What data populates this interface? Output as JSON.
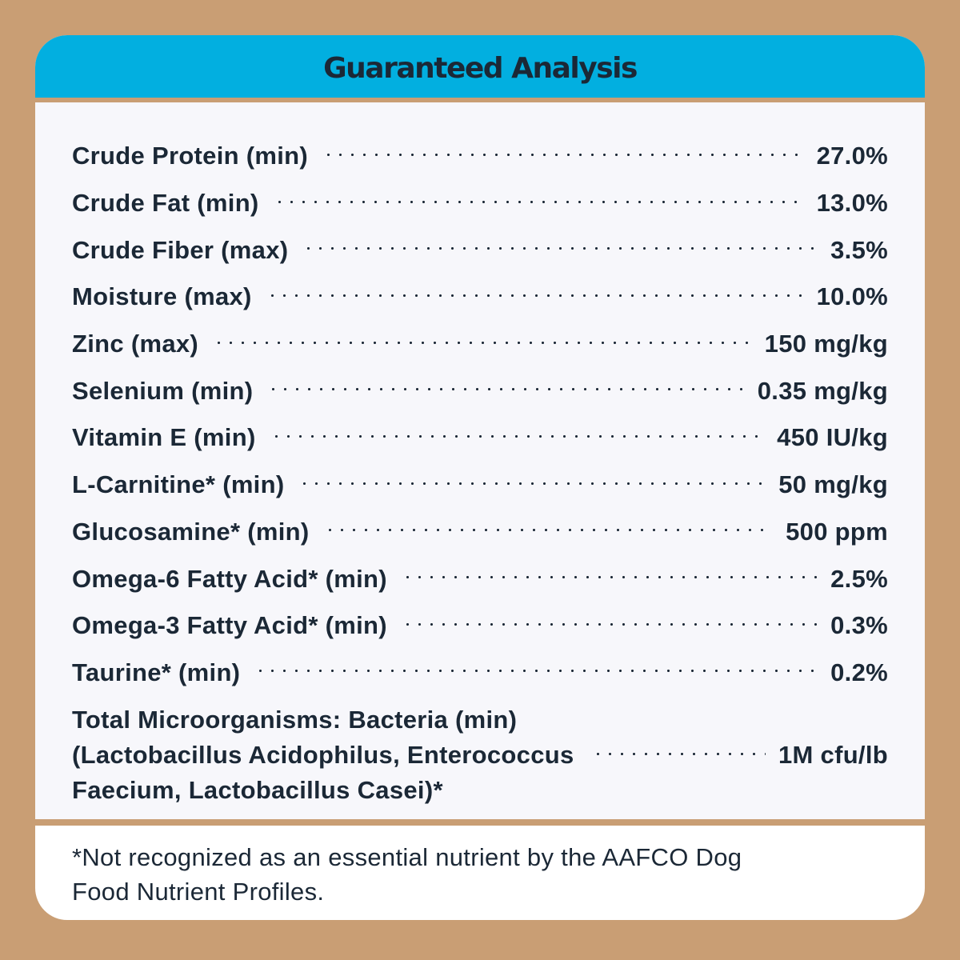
{
  "title": "Guaranteed Analysis",
  "rows": [
    {
      "label": "Crude Protein (min)",
      "value": "27.0%"
    },
    {
      "label": "Crude Fat (min)",
      "value": "13.0%"
    },
    {
      "label": "Crude Fiber (max)",
      "value": "3.5%"
    },
    {
      "label": "Moisture (max)",
      "value": "10.0%"
    },
    {
      "label": "Zinc (max)",
      "value": "150 mg/kg"
    },
    {
      "label": "Selenium (min)",
      "value": "0.35 mg/kg"
    },
    {
      "label": "Vitamin E (min)",
      "value": "450 IU/kg"
    },
    {
      "label": "L-Carnitine* (min)",
      "value": "50 mg/kg"
    },
    {
      "label": "Glucosamine* (min)",
      "value": "500 ppm"
    },
    {
      "label": "Omega-6 Fatty Acid* (min)",
      "value": "2.5%"
    },
    {
      "label": "Omega-3 Fatty Acid* (min)",
      "value": "0.3%"
    },
    {
      "label": "Taurine* (min)",
      "value": "0.2%"
    }
  ],
  "microorganisms": {
    "label_lines": [
      "Total Microorganisms: Bacteria (min)",
      "(Lactobacillus Acidophilus, Enterococcus",
      "Faecium, Lactobacillus Casei)*"
    ],
    "value": "1M cfu/lb"
  },
  "footnote": {
    "lines": [
      "*Not recognized as an essential nutrient by the AAFCO Dog",
      "Food Nutrient Profiles."
    ]
  },
  "colors": {
    "background": "#c99e74",
    "header": "#02afe0",
    "text": "#1b2836",
    "table_bg": "#f7f7fb",
    "footnote_bg": "#ffffff"
  }
}
